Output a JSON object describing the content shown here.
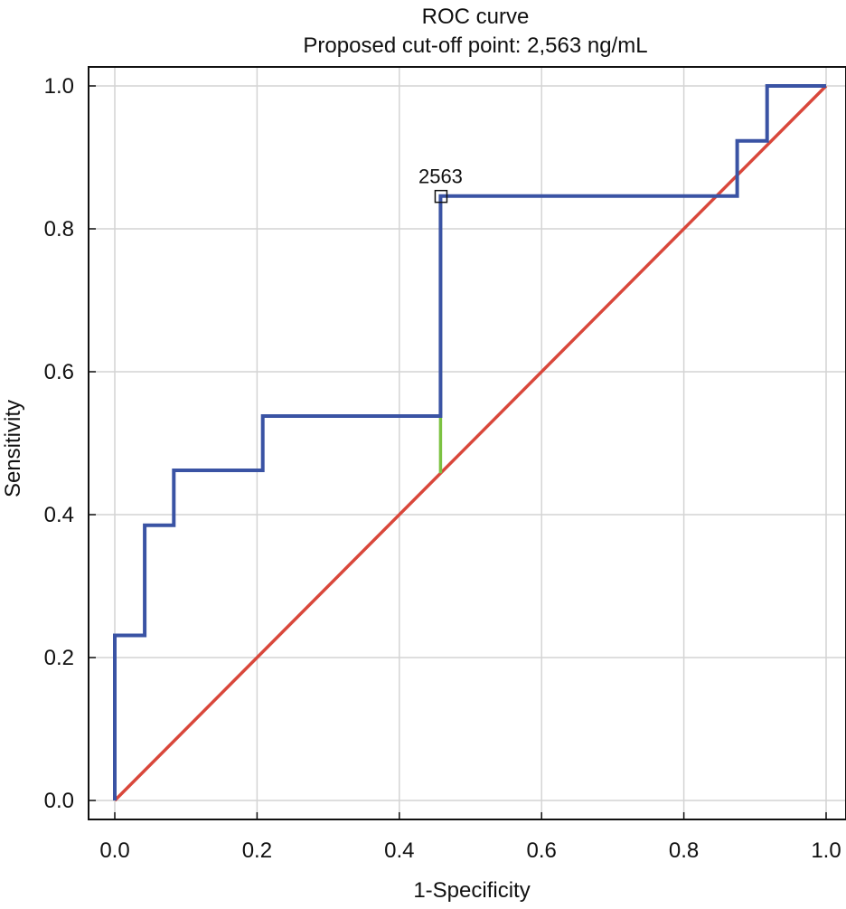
{
  "chart_data": {
    "type": "line",
    "title": "ROC curve",
    "subtitle": "Proposed cut-off point: 2,563 ng/mL",
    "xlabel": "1-Specificity",
    "ylabel": "Sensitivity",
    "xlim": [
      0.0,
      1.0
    ],
    "ylim": [
      0.0,
      1.0
    ],
    "xticks": [
      "0.0",
      "0.2",
      "0.4",
      "0.6",
      "0.8",
      "1.0"
    ],
    "yticks": [
      "0.0",
      "0.2",
      "0.4",
      "0.6",
      "0.8",
      "1.0"
    ],
    "grid": true,
    "series": [
      {
        "kind": "roc",
        "color": "#3a53a4",
        "points": [
          [
            0.0,
            0.0
          ],
          [
            0.0,
            0.231
          ],
          [
            0.042,
            0.231
          ],
          [
            0.042,
            0.385
          ],
          [
            0.083,
            0.385
          ],
          [
            0.083,
            0.462
          ],
          [
            0.208,
            0.462
          ],
          [
            0.208,
            0.538
          ],
          [
            0.458,
            0.538
          ],
          [
            0.458,
            0.846
          ],
          [
            0.875,
            0.846
          ],
          [
            0.875,
            0.923
          ],
          [
            0.917,
            0.923
          ],
          [
            0.917,
            1.0
          ],
          [
            1.0,
            1.0
          ]
        ]
      },
      {
        "kind": "reference",
        "color": "#d9473b",
        "points": [
          [
            0.0,
            0.0
          ],
          [
            1.0,
            1.0
          ]
        ]
      },
      {
        "kind": "youden",
        "color": "#7cc242",
        "points": [
          [
            0.458,
            0.458
          ],
          [
            0.458,
            0.846
          ]
        ]
      }
    ],
    "annotations": [
      {
        "text": "2563",
        "x": 0.458,
        "y": 0.846,
        "marker": "square"
      }
    ]
  }
}
